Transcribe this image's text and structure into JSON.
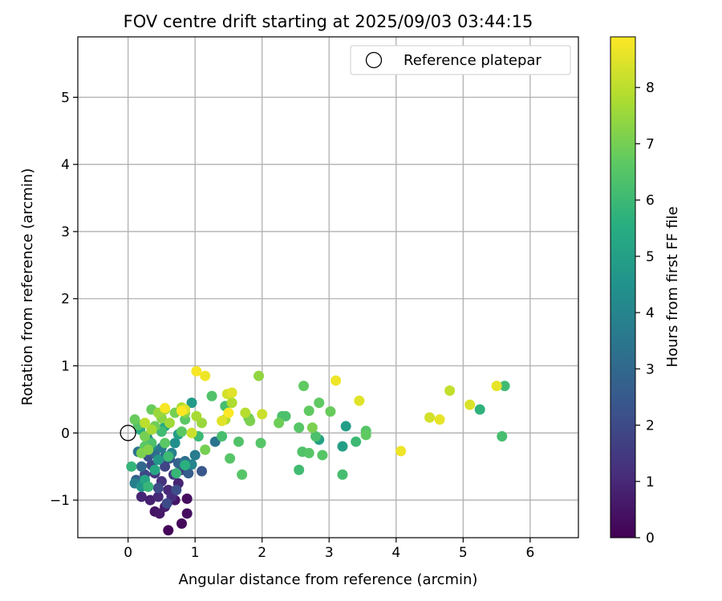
{
  "chart_data": {
    "type": "scatter",
    "title": "FOV centre drift starting at 2025/09/03 03:44:15",
    "xlabel": "Angular distance from reference (arcmin)",
    "ylabel": "Rotation from reference (arcmin)",
    "xlim": [
      -0.75,
      6.72
    ],
    "ylim": [
      -1.56,
      5.9
    ],
    "xticks": [
      0,
      1,
      2,
      3,
      4,
      5,
      6
    ],
    "yticks": [
      -1,
      0,
      1,
      2,
      3,
      4,
      5
    ],
    "grid": true,
    "legend": {
      "placement": "top-right",
      "entries": [
        "Reference platepar"
      ]
    },
    "reference_point": {
      "x": 0,
      "y": 0,
      "label": "Reference platepar"
    },
    "colorbar": {
      "label": "Hours from first FF file",
      "colormap": "viridis",
      "range": [
        0,
        8.9
      ],
      "ticks": [
        0,
        1,
        2,
        3,
        4,
        5,
        6,
        7,
        8
      ]
    },
    "points": [
      {
        "x": 0.6,
        "y": -1.45,
        "h": 0.1
      },
      {
        "x": 0.8,
        "y": -1.35,
        "h": 0.2
      },
      {
        "x": 0.88,
        "y": -1.2,
        "h": 0.3
      },
      {
        "x": 0.88,
        "y": -0.98,
        "h": 0.3
      },
      {
        "x": 0.4,
        "y": -1.17,
        "h": 0.5
      },
      {
        "x": 0.47,
        "y": -1.2,
        "h": 0.6
      },
      {
        "x": 0.7,
        "y": -1.0,
        "h": 0.5
      },
      {
        "x": 0.55,
        "y": -1.1,
        "h": 0.7
      },
      {
        "x": 0.33,
        "y": -1.0,
        "h": 0.8
      },
      {
        "x": 0.2,
        "y": -0.95,
        "h": 0.9
      },
      {
        "x": 0.6,
        "y": -0.85,
        "h": 1.0
      },
      {
        "x": 0.75,
        "y": -0.75,
        "h": 0.9
      },
      {
        "x": 0.45,
        "y": -0.95,
        "h": 1.0
      },
      {
        "x": 0.3,
        "y": -0.8,
        "h": 1.2
      },
      {
        "x": 0.65,
        "y": -0.95,
        "h": 1.1
      },
      {
        "x": 0.5,
        "y": -0.72,
        "h": 1.3
      },
      {
        "x": 0.4,
        "y": -0.6,
        "h": 1.4
      },
      {
        "x": 0.68,
        "y": -0.62,
        "h": 1.5
      },
      {
        "x": 0.8,
        "y": -0.55,
        "h": 1.6
      },
      {
        "x": 0.55,
        "y": -0.5,
        "h": 1.8
      },
      {
        "x": 0.35,
        "y": -0.48,
        "h": 1.9
      },
      {
        "x": 0.25,
        "y": -0.62,
        "h": 1.9
      },
      {
        "x": 0.45,
        "y": -0.82,
        "h": 2.0
      },
      {
        "x": 0.58,
        "y": -1.05,
        "h": 2.0
      },
      {
        "x": 0.72,
        "y": -0.85,
        "h": 2.1
      },
      {
        "x": 0.3,
        "y": -0.35,
        "h": 2.2
      },
      {
        "x": 0.62,
        "y": -0.38,
        "h": 2.3
      },
      {
        "x": 1.1,
        "y": -0.57,
        "h": 2.4
      },
      {
        "x": 0.9,
        "y": -0.6,
        "h": 2.6
      },
      {
        "x": 0.12,
        "y": -0.7,
        "h": 2.7
      },
      {
        "x": 0.75,
        "y": -0.45,
        "h": 2.8
      },
      {
        "x": 0.2,
        "y": -0.5,
        "h": 3.0
      },
      {
        "x": 0.4,
        "y": -0.3,
        "h": 3.1
      },
      {
        "x": 0.55,
        "y": -0.35,
        "h": 3.2
      },
      {
        "x": 0.85,
        "y": -0.42,
        "h": 3.3
      },
      {
        "x": 1.3,
        "y": -0.13,
        "h": 3.4
      },
      {
        "x": 0.15,
        "y": -0.28,
        "h": 3.4
      },
      {
        "x": 0.3,
        "y": -0.1,
        "h": 3.5
      },
      {
        "x": 0.5,
        "y": -0.22,
        "h": 3.6
      },
      {
        "x": 1.0,
        "y": -0.33,
        "h": 3.7
      },
      {
        "x": 0.1,
        "y": -0.75,
        "h": 3.8
      },
      {
        "x": 0.65,
        "y": -0.3,
        "h": 3.9
      },
      {
        "x": 0.95,
        "y": -0.47,
        "h": 4.0
      },
      {
        "x": 0.35,
        "y": -0.2,
        "h": 4.2
      },
      {
        "x": 0.7,
        "y": -0.15,
        "h": 4.4
      },
      {
        "x": 0.28,
        "y": -0.05,
        "h": 4.5
      },
      {
        "x": 0.2,
        "y": -0.8,
        "h": 4.6
      },
      {
        "x": 0.45,
        "y": -0.4,
        "h": 4.7
      },
      {
        "x": 0.95,
        "y": 0.45,
        "h": 4.8
      },
      {
        "x": 0.75,
        "y": -0.02,
        "h": 4.9
      },
      {
        "x": 3.25,
        "y": 0.1,
        "h": 4.9
      },
      {
        "x": 3.2,
        "y": -0.2,
        "h": 5.0
      },
      {
        "x": 2.85,
        "y": -0.1,
        "h": 5.1
      },
      {
        "x": 0.25,
        "y": -0.7,
        "h": 5.2
      },
      {
        "x": 0.4,
        "y": -0.55,
        "h": 5.3
      },
      {
        "x": 0.55,
        "y": 0.1,
        "h": 5.4
      },
      {
        "x": 0.18,
        "y": 0.05,
        "h": 5.5
      },
      {
        "x": 0.85,
        "y": -0.48,
        "h": 5.6
      },
      {
        "x": 5.25,
        "y": 0.35,
        "h": 5.7
      },
      {
        "x": 0.05,
        "y": -0.5,
        "h": 5.8
      },
      {
        "x": 0.72,
        "y": -0.6,
        "h": 5.9
      },
      {
        "x": 0.3,
        "y": -0.8,
        "h": 5.9
      },
      {
        "x": 0.6,
        "y": -0.35,
        "h": 6.0
      },
      {
        "x": 1.05,
        "y": -0.05,
        "h": 6.0
      },
      {
        "x": 3.4,
        "y": -0.13,
        "h": 6.0
      },
      {
        "x": 5.62,
        "y": 0.7,
        "h": 6.1
      },
      {
        "x": 0.5,
        "y": 0.02,
        "h": 6.1
      },
      {
        "x": 2.55,
        "y": -0.55,
        "h": 6.1
      },
      {
        "x": 1.45,
        "y": 0.4,
        "h": 6.2
      },
      {
        "x": 3.2,
        "y": -0.62,
        "h": 6.2
      },
      {
        "x": 5.58,
        "y": -0.05,
        "h": 6.2
      },
      {
        "x": 1.4,
        "y": -0.05,
        "h": 6.2
      },
      {
        "x": 2.3,
        "y": 0.25,
        "h": 6.3
      },
      {
        "x": 2.35,
        "y": 0.25,
        "h": 6.3
      },
      {
        "x": 2.8,
        "y": -0.05,
        "h": 6.3
      },
      {
        "x": 0.35,
        "y": -0.15,
        "h": 6.3
      },
      {
        "x": 1.25,
        "y": 0.55,
        "h": 6.4
      },
      {
        "x": 1.65,
        "y": -0.13,
        "h": 6.4
      },
      {
        "x": 0.15,
        "y": 0.12,
        "h": 6.4
      },
      {
        "x": 2.6,
        "y": -0.28,
        "h": 6.4
      },
      {
        "x": 1.52,
        "y": -0.38,
        "h": 6.5
      },
      {
        "x": 1.98,
        "y": -0.15,
        "h": 6.5
      },
      {
        "x": 1.7,
        "y": -0.62,
        "h": 6.5
      },
      {
        "x": 2.7,
        "y": -0.3,
        "h": 6.5
      },
      {
        "x": 2.9,
        "y": -0.33,
        "h": 6.5
      },
      {
        "x": 3.55,
        "y": 0.03,
        "h": 6.5
      },
      {
        "x": 2.55,
        "y": 0.08,
        "h": 6.5
      },
      {
        "x": 0.55,
        "y": -0.15,
        "h": 6.6
      },
      {
        "x": 0.25,
        "y": -0.2,
        "h": 6.6
      },
      {
        "x": 0.8,
        "y": 0.02,
        "h": 6.6
      },
      {
        "x": 0.85,
        "y": 0.2,
        "h": 6.6
      },
      {
        "x": 2.62,
        "y": 0.7,
        "h": 6.7
      },
      {
        "x": 2.85,
        "y": 0.45,
        "h": 6.7
      },
      {
        "x": 2.7,
        "y": 0.33,
        "h": 6.7
      },
      {
        "x": 3.55,
        "y": -0.03,
        "h": 6.7
      },
      {
        "x": 1.8,
        "y": 0.22,
        "h": 6.8
      },
      {
        "x": 0.1,
        "y": 0.2,
        "h": 6.8
      },
      {
        "x": 3.02,
        "y": 0.32,
        "h": 6.8
      },
      {
        "x": 0.35,
        "y": 0.35,
        "h": 6.8
      },
      {
        "x": 2.25,
        "y": 0.15,
        "h": 6.9
      },
      {
        "x": 0.4,
        "y": 0.1,
        "h": 6.9
      },
      {
        "x": 0.25,
        "y": -0.05,
        "h": 7.0
      },
      {
        "x": 1.15,
        "y": -0.25,
        "h": 7.0
      },
      {
        "x": 0.7,
        "y": 0.3,
        "h": 7.0
      },
      {
        "x": 1.82,
        "y": 0.18,
        "h": 7.1
      },
      {
        "x": 2.75,
        "y": 0.08,
        "h": 7.1
      },
      {
        "x": 0.2,
        "y": -0.3,
        "h": 7.1
      },
      {
        "x": 0.3,
        "y": -0.25,
        "h": 7.2
      },
      {
        "x": 0.85,
        "y": 0.3,
        "h": 7.2
      },
      {
        "x": 0.5,
        "y": 0.22,
        "h": 7.3
      },
      {
        "x": 1.95,
        "y": 0.85,
        "h": 7.4
      },
      {
        "x": 1.1,
        "y": 0.15,
        "h": 7.5
      },
      {
        "x": 0.45,
        "y": 0.3,
        "h": 7.5
      },
      {
        "x": 0.62,
        "y": 0.15,
        "h": 7.6
      },
      {
        "x": 0.55,
        "y": 0.35,
        "h": 7.6
      },
      {
        "x": 0.35,
        "y": 0.05,
        "h": 7.7
      },
      {
        "x": 1.02,
        "y": 0.25,
        "h": 7.7
      },
      {
        "x": 1.55,
        "y": 0.45,
        "h": 7.8
      },
      {
        "x": 1.45,
        "y": 0.2,
        "h": 7.8
      },
      {
        "x": 0.8,
        "y": 0.38,
        "h": 7.8
      },
      {
        "x": 1.75,
        "y": 0.3,
        "h": 7.9
      },
      {
        "x": 0.25,
        "y": 0.15,
        "h": 8.0
      },
      {
        "x": 4.8,
        "y": 0.63,
        "h": 8.1
      },
      {
        "x": 2.0,
        "y": 0.28,
        "h": 8.2
      },
      {
        "x": 0.95,
        "y": 0.0,
        "h": 8.2
      },
      {
        "x": 1.48,
        "y": 0.58,
        "h": 8.3
      },
      {
        "x": 4.5,
        "y": 0.23,
        "h": 8.3
      },
      {
        "x": 0.85,
        "y": 0.35,
        "h": 8.4
      },
      {
        "x": 5.1,
        "y": 0.42,
        "h": 8.4
      },
      {
        "x": 3.45,
        "y": 0.48,
        "h": 8.5
      },
      {
        "x": 1.55,
        "y": 0.6,
        "h": 8.5
      },
      {
        "x": 1.4,
        "y": 0.18,
        "h": 8.5
      },
      {
        "x": 4.65,
        "y": 0.2,
        "h": 8.6
      },
      {
        "x": 5.5,
        "y": 0.7,
        "h": 8.6
      },
      {
        "x": 1.15,
        "y": 0.85,
        "h": 8.7
      },
      {
        "x": 3.1,
        "y": 0.78,
        "h": 8.7
      },
      {
        "x": 4.07,
        "y": -0.27,
        "h": 8.7
      },
      {
        "x": 1.02,
        "y": 0.92,
        "h": 8.8
      },
      {
        "x": 0.55,
        "y": 0.37,
        "h": 8.8
      },
      {
        "x": 1.5,
        "y": 0.3,
        "h": 8.9
      },
      {
        "x": 0.8,
        "y": 0.33,
        "h": 8.9
      }
    ]
  }
}
